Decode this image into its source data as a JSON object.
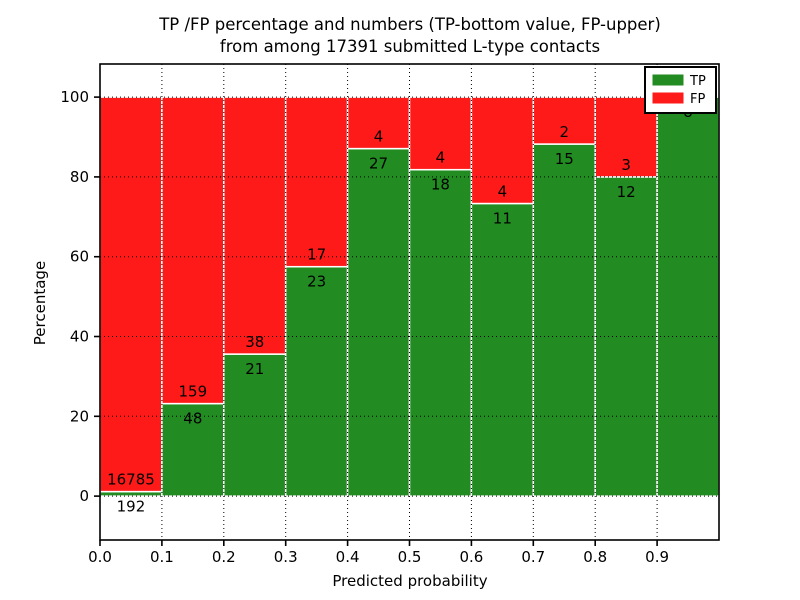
{
  "figure": {
    "background": "#ffffff",
    "title_line1": "TP /FP percentage and numbers (TP-bottom value, FP-upper)",
    "title_line2": "from among 17391 submitted L-type contacts"
  },
  "chart_data": {
    "type": "bar",
    "stacked": true,
    "title": "TP /FP percentage and numbers (TP-bottom value, FP-upper)\nfrom among 17391 submitted L-type contacts",
    "xlabel": "Predicted probability",
    "ylabel": "Percentage",
    "xlim": [
      0.0,
      1.0
    ],
    "ylim": [
      -11,
      108.3
    ],
    "bin_width": 0.1,
    "x_ticks": [
      0.0,
      0.1,
      0.2,
      0.3,
      0.4,
      0.5,
      0.6,
      0.7,
      0.8,
      0.9
    ],
    "x_tick_labels": [
      "0.0",
      "0.1",
      "0.2",
      "0.3",
      "0.4",
      "0.5",
      "0.6",
      "0.7",
      "0.8",
      "0.9"
    ],
    "y_ticks": [
      0,
      20,
      40,
      60,
      80,
      100
    ],
    "y_tick_labels": [
      "0",
      "20",
      "40",
      "60",
      "80",
      "100"
    ],
    "grid": true,
    "grid_style": "dotted",
    "bar_edge_color": "#ffffff",
    "total_contacts": 17391,
    "series": [
      {
        "name": "TP",
        "color": "#228b22",
        "counts": [
          192,
          48,
          21,
          23,
          27,
          18,
          11,
          15,
          12,
          8
        ]
      },
      {
        "name": "FP",
        "color": "#ff1a1a",
        "counts": [
          16785,
          159,
          38,
          17,
          4,
          4,
          4,
          2,
          3,
          0
        ]
      }
    ],
    "tp_percentages": [
      1.13,
      23.19,
      35.59,
      57.5,
      87.1,
      81.82,
      73.33,
      88.24,
      80.0,
      100.0
    ],
    "legend": {
      "position": "upper right",
      "entries": [
        {
          "label": "TP",
          "color": "#228b22"
        },
        {
          "label": "FP",
          "color": "#ff1a1a"
        }
      ]
    }
  }
}
